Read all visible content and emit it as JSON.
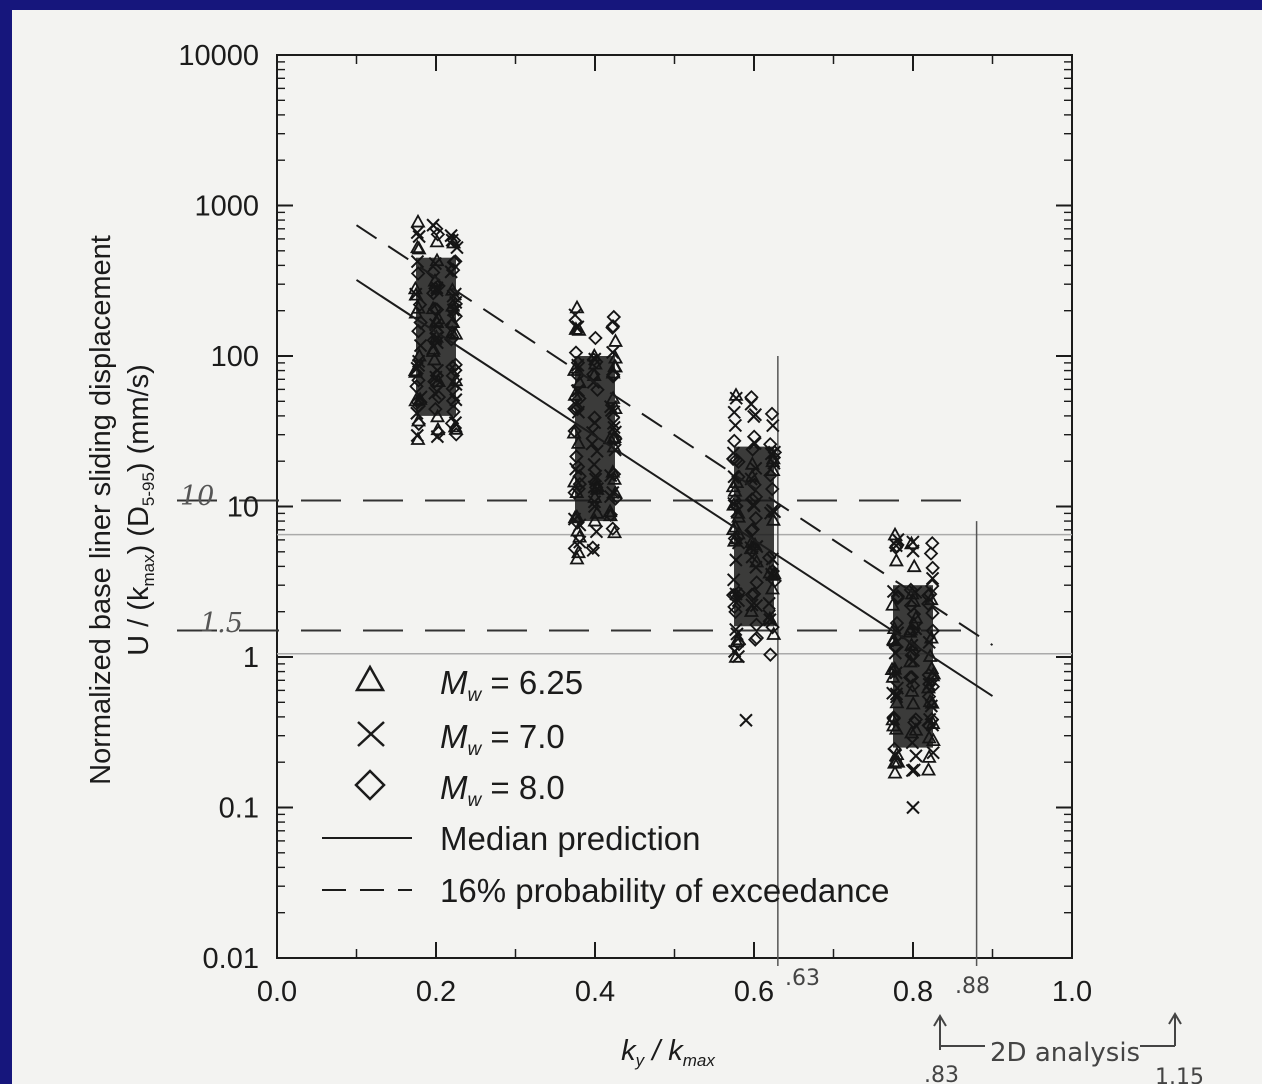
{
  "chart_data": {
    "type": "scatter",
    "y_scale": "log",
    "xlim": [
      0.0,
      1.0
    ],
    "ylim": [
      0.01,
      10000
    ],
    "x_ticks": [
      "0.0",
      "0.2",
      "0.4",
      "0.6",
      "0.8",
      "1.0"
    ],
    "y_ticks": [
      "0.01",
      "0.1",
      "1",
      "10",
      "100",
      "1000",
      "10000"
    ],
    "xlabel_main": "k",
    "xlabel_sub": "y",
    "xlabel_div": " / k",
    "xlabel_sub2": "max",
    "ylabel_line1": "Normalized base liner sliding displacement",
    "ylabel_line2": "U / (k",
    "ylabel_line2_sub": "max",
    "ylabel_line2_mid": ") (D",
    "ylabel_line2_sub2": "5-95",
    "ylabel_line2_end": ") (mm/s)",
    "legend": [
      {
        "symbol": "triangle",
        "label_prefix": "M",
        "label_sub": "w",
        "label_value": " = 6.25"
      },
      {
        "symbol": "x",
        "label_prefix": "M",
        "label_sub": "w",
        "label_value": " = 7.0"
      },
      {
        "symbol": "diamond",
        "label_prefix": "M",
        "label_sub": "w",
        "label_value": " = 8.0"
      },
      {
        "symbol": "solid-line",
        "label": "Median prediction"
      },
      {
        "symbol": "dashed-line",
        "label": "16% probability of exceedance"
      }
    ],
    "median_prediction": {
      "x": [
        0.1,
        0.9
      ],
      "y": [
        320,
        0.55
      ]
    },
    "exceedance_16pct": {
      "x": [
        0.1,
        0.9
      ],
      "y": [
        740,
        1.2
      ]
    },
    "data_columns": [
      {
        "x": 0.2,
        "y_min": 28,
        "y_max": 780,
        "dense_min": 40,
        "dense_max": 450
      },
      {
        "x": 0.4,
        "y_min": 4.5,
        "y_max": 210,
        "dense_min": 8,
        "dense_max": 100
      },
      {
        "x": 0.6,
        "y_min": 1.0,
        "y_max": 55,
        "dense_min": 1.6,
        "dense_max": 25
      },
      {
        "x": 0.8,
        "y_min": 0.17,
        "y_max": 6.5,
        "dense_min": 0.25,
        "dense_max": 3
      }
    ],
    "outliers": [
      {
        "x": 0.6,
        "y": 0.38,
        "symbol": "x"
      },
      {
        "x": 0.8,
        "y": 0.1,
        "symbol": "x"
      }
    ]
  },
  "annotations": {
    "y_10": "10",
    "y_1_5": "1.5",
    "x_63": ".63",
    "x_88": ".88",
    "x_83": ".83",
    "x_115": "1.15",
    "range_label": "2D analysis"
  }
}
